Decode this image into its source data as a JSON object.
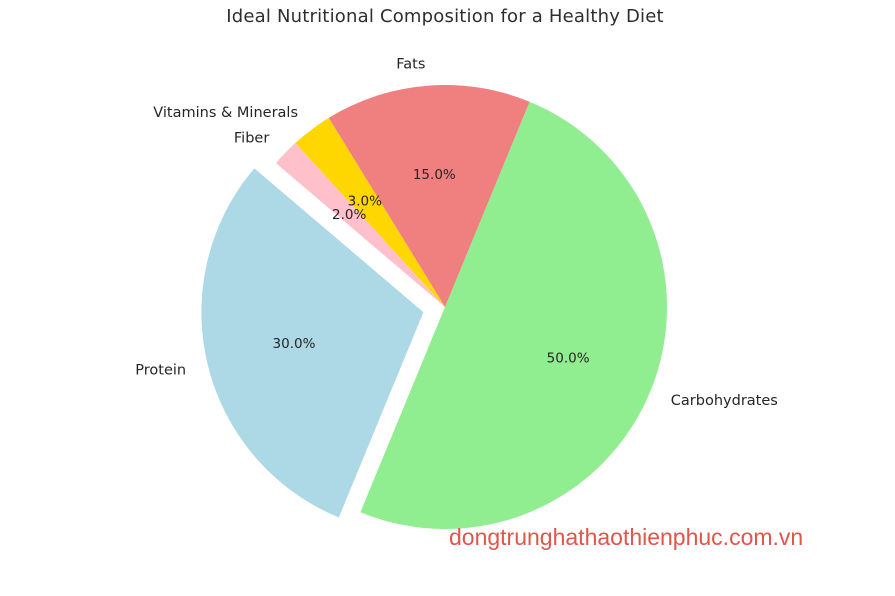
{
  "title": "Ideal Nutritional Composition for a Healthy Diet",
  "watermark": {
    "text": "dongtrunghathaothienphuc.com.vn",
    "color": "#e0564a"
  },
  "chart_data": {
    "type": "pie",
    "title": "Ideal Nutritional Composition for a Healthy Diet",
    "direction": "counterclockwise",
    "start_angle_deg": -112.4,
    "legend": "none",
    "background": "#ffffff",
    "text_color": "#262626",
    "slices": [
      {
        "label": "Carbohydrates",
        "value": 50.0,
        "pct_label": "50.0%",
        "color": "#90EE90",
        "explode": 0
      },
      {
        "label": "Fats",
        "value": 15.0,
        "pct_label": "15.0%",
        "color": "#F08080",
        "explode": 0
      },
      {
        "label": "Vitamins & Minerals",
        "value": 3.0,
        "pct_label": "3.0%",
        "color": "#FFD700",
        "explode": 0
      },
      {
        "label": "Fiber",
        "value": 2.0,
        "pct_label": "2.0%",
        "color": "#FFC0CB",
        "explode": 0
      },
      {
        "label": "Protein",
        "value": 30.0,
        "pct_label": "30.0%",
        "color": "#ADD8E6",
        "explode": 0.1
      }
    ]
  }
}
